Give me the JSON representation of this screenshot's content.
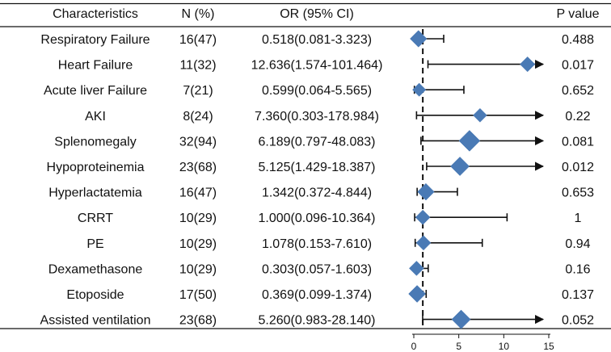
{
  "chart_data": {
    "type": "forest",
    "headers": {
      "characteristics": "Characteristics",
      "n": "N (%)",
      "or": "OR (95% CI)",
      "p": "P value"
    },
    "reference_line": 1,
    "xlim": [
      0,
      15
    ],
    "xticks": [
      0,
      5,
      10,
      15
    ],
    "marker_color": "#4a7ab5",
    "rows": [
      {
        "label": "Respiratory Failure",
        "n": "16(47)",
        "or_text": "0.518(0.081-3.323)",
        "p": "0.488",
        "or": 0.518,
        "lo": 0.081,
        "hi": 3.323,
        "n_count": 16
      },
      {
        "label": "Heart Failure",
        "n": "11(32)",
        "or_text": "12.636(1.574-101.464)",
        "p": "0.017",
        "or": 12.636,
        "lo": 1.574,
        "hi": 101.464,
        "n_count": 11
      },
      {
        "label": "Acute liver Failure",
        "n": "7(21)",
        "or_text": "0.599(0.064-5.565)",
        "p": "0.652",
        "or": 0.599,
        "lo": 0.064,
        "hi": 5.565,
        "n_count": 7
      },
      {
        "label": "AKI",
        "n": "8(24)",
        "or_text": "7.360(0.303-178.984)",
        "p": "0.22",
        "or": 7.36,
        "lo": 0.303,
        "hi": 178.984,
        "n_count": 8
      },
      {
        "label": "Splenomegaly",
        "n": "32(94)",
        "or_text": "6.189(0.797-48.083)",
        "p": "0.081",
        "or": 6.189,
        "lo": 0.797,
        "hi": 48.083,
        "n_count": 32
      },
      {
        "label": "Hypoproteinemia",
        "n": "23(68)",
        "or_text": "5.125(1.429-18.387)",
        "p": "0.012",
        "or": 5.125,
        "lo": 1.429,
        "hi": 18.387,
        "n_count": 23
      },
      {
        "label": "Hyperlactatemia",
        "n": "16(47)",
        "or_text": "1.342(0.372-4.844)",
        "p": "0.653",
        "or": 1.342,
        "lo": 0.372,
        "hi": 4.844,
        "n_count": 16
      },
      {
        "label": "CRRT",
        "n": "10(29)",
        "or_text": "1.000(0.096-10.364)",
        "p": "1",
        "or": 1.0,
        "lo": 0.096,
        "hi": 10.364,
        "n_count": 10
      },
      {
        "label": "PE",
        "n": "10(29)",
        "or_text": "1.078(0.153-7.610)",
        "p": "0.94",
        "or": 1.078,
        "lo": 0.153,
        "hi": 7.61,
        "n_count": 10
      },
      {
        "label": "Dexamethasone",
        "n": "10(29)",
        "or_text": "0.303(0.057-1.603)",
        "p": "0.16",
        "or": 0.303,
        "lo": 0.057,
        "hi": 1.603,
        "n_count": 10
      },
      {
        "label": "Etoposide",
        "n": "17(50)",
        "or_text": "0.369(0.099-1.374)",
        "p": "0.137",
        "or": 0.369,
        "lo": 0.099,
        "hi": 1.374,
        "n_count": 17
      },
      {
        "label": "Assisted ventilation",
        "n": "23(68)",
        "or_text": "5.260(0.983-28.140)",
        "p": "0.052",
        "or": 5.26,
        "lo": 0.983,
        "hi": 28.14,
        "n_count": 23
      }
    ]
  }
}
